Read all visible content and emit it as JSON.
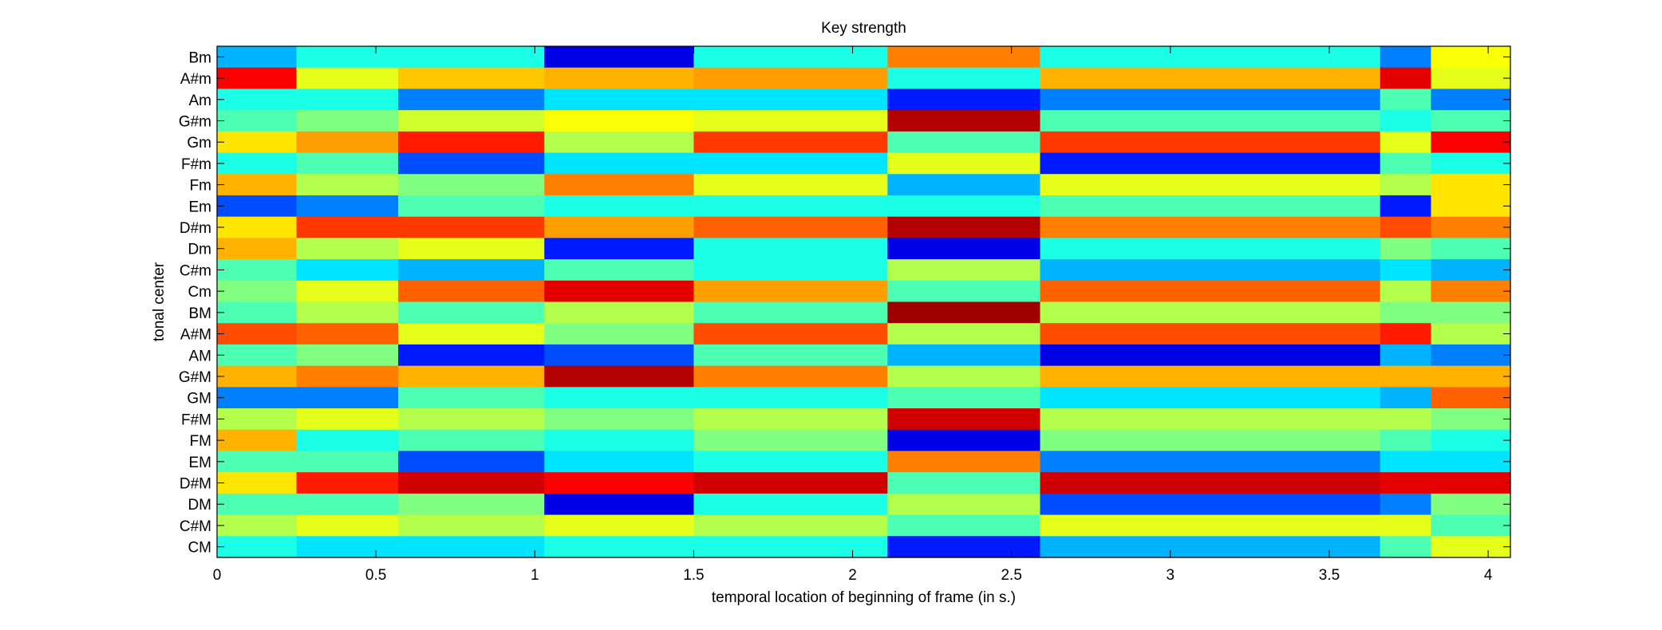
{
  "chart_data": {
    "type": "heatmap",
    "title": "Key strength",
    "xlabel": "temporal location of beginning of frame (in s.)",
    "ylabel": "tonal center",
    "xlim": [
      0,
      4.07
    ],
    "x_ticks": [
      0,
      0.5,
      1,
      1.5,
      2,
      2.5,
      3,
      3.5,
      4
    ],
    "x_tick_labels": [
      "0",
      "0.5",
      "1",
      "1.5",
      "2",
      "2.5",
      "3",
      "3.5",
      "4"
    ],
    "y_categories_top_to_bottom": [
      "Bm",
      "A#m",
      "Am",
      "G#m",
      "Gm",
      "F#m",
      "Fm",
      "Em",
      "D#m",
      "Dm",
      "C#m",
      "Cm",
      "BM",
      "A#M",
      "AM",
      "G#M",
      "GM",
      "F#M",
      "FM",
      "EM",
      "D#M",
      "DM",
      "C#M",
      "CM"
    ],
    "colormap": "jet",
    "value_range": [
      0,
      1
    ],
    "segments": [
      {
        "x0": 0.0,
        "x1": 0.25,
        "values": [
          0.3,
          0.88,
          0.4,
          0.45,
          0.65,
          0.4,
          0.7,
          0.2,
          0.65,
          0.7,
          0.45,
          0.5,
          0.45,
          0.8,
          0.45,
          0.7,
          0.25,
          0.55,
          0.7,
          0.45,
          0.65,
          0.45,
          0.55,
          0.4
        ]
      },
      {
        "x0": 0.25,
        "x1": 0.57,
        "values": [
          0.4,
          0.6,
          0.4,
          0.5,
          0.72,
          0.45,
          0.55,
          0.25,
          0.82,
          0.55,
          0.35,
          0.6,
          0.55,
          0.78,
          0.5,
          0.75,
          0.25,
          0.6,
          0.4,
          0.45,
          0.85,
          0.45,
          0.6,
          0.35
        ]
      },
      {
        "x0": 0.57,
        "x1": 1.03,
        "values": [
          0.4,
          0.68,
          0.25,
          0.58,
          0.85,
          0.2,
          0.5,
          0.45,
          0.82,
          0.6,
          0.3,
          0.78,
          0.45,
          0.6,
          0.15,
          0.7,
          0.45,
          0.55,
          0.45,
          0.2,
          0.92,
          0.5,
          0.55,
          0.35
        ]
      },
      {
        "x0": 1.03,
        "x1": 1.5,
        "values": [
          0.1,
          0.7,
          0.35,
          0.62,
          0.55,
          0.35,
          0.75,
          0.4,
          0.72,
          0.15,
          0.45,
          0.9,
          0.55,
          0.5,
          0.2,
          0.95,
          0.4,
          0.5,
          0.4,
          0.35,
          0.88,
          0.1,
          0.6,
          0.4
        ]
      },
      {
        "x0": 1.5,
        "x1": 2.11,
        "values": [
          0.4,
          0.72,
          0.35,
          0.6,
          0.82,
          0.35,
          0.6,
          0.4,
          0.78,
          0.4,
          0.4,
          0.72,
          0.45,
          0.8,
          0.45,
          0.75,
          0.4,
          0.55,
          0.5,
          0.4,
          0.92,
          0.4,
          0.55,
          0.4
        ]
      },
      {
        "x0": 2.11,
        "x1": 2.59,
        "values": [
          0.75,
          0.4,
          0.15,
          0.95,
          0.45,
          0.6,
          0.3,
          0.4,
          0.95,
          0.1,
          0.55,
          0.45,
          0.97,
          0.55,
          0.3,
          0.55,
          0.45,
          0.92,
          0.1,
          0.75,
          0.45,
          0.55,
          0.45,
          0.15
        ]
      },
      {
        "x0": 2.59,
        "x1": 3.66,
        "values": [
          0.4,
          0.7,
          0.25,
          0.45,
          0.82,
          0.15,
          0.6,
          0.45,
          0.75,
          0.4,
          0.3,
          0.78,
          0.55,
          0.8,
          0.1,
          0.7,
          0.35,
          0.55,
          0.5,
          0.25,
          0.92,
          0.2,
          0.6,
          0.3
        ]
      },
      {
        "x0": 3.66,
        "x1": 3.82,
        "values": [
          0.25,
          0.9,
          0.45,
          0.4,
          0.6,
          0.45,
          0.55,
          0.15,
          0.8,
          0.5,
          0.35,
          0.55,
          0.5,
          0.85,
          0.3,
          0.7,
          0.3,
          0.55,
          0.45,
          0.35,
          0.9,
          0.25,
          0.6,
          0.45
        ]
      },
      {
        "x0": 3.82,
        "x1": 4.07,
        "values": [
          0.62,
          0.6,
          0.25,
          0.45,
          0.88,
          0.4,
          0.65,
          0.65,
          0.75,
          0.45,
          0.3,
          0.75,
          0.5,
          0.55,
          0.25,
          0.7,
          0.78,
          0.5,
          0.4,
          0.35,
          0.9,
          0.5,
          0.45,
          0.6
        ]
      }
    ]
  }
}
